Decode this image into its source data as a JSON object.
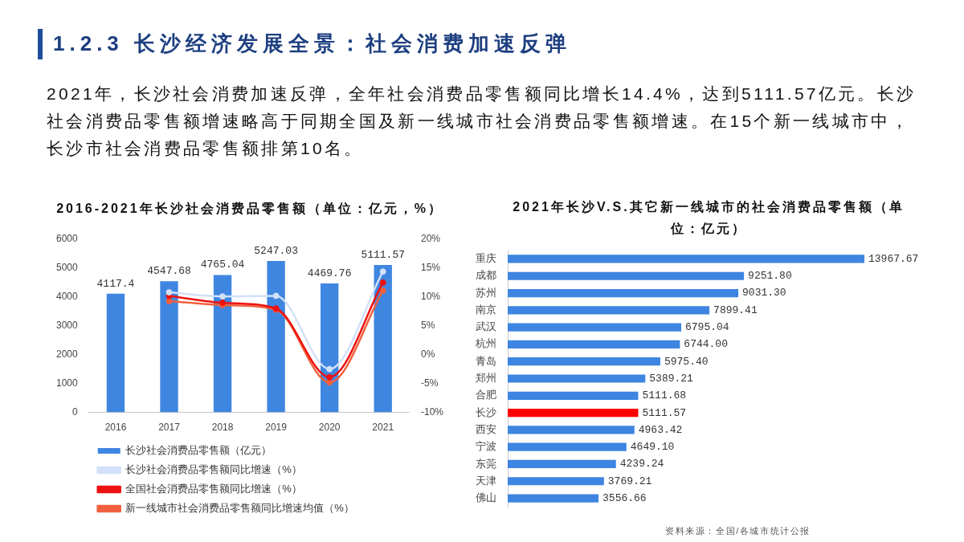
{
  "chart_data": [
    {
      "type": "other",
      "title": "1.2.3 长沙经济发展全景：社会消费加速反弹",
      "subtitle": "2021年，长沙社会消费加速反弹，全年社会消费品零售额同比增长14.4%，达到5111.57亿元。长沙社会消费品零售额增速略高于同期全国及新一线城市社会消费品零售额增速。在15个新一线城市中，长沙市社会消费品零售额排第10名。"
    },
    {
      "type": "bar",
      "title": "2016-2021年长沙社会消费品零售额（单位：亿元，%）",
      "categories": [
        "2016",
        "2017",
        "2018",
        "2019",
        "2020",
        "2021"
      ],
      "series": [
        {
          "name": "长沙社会消费品零售额（亿元）",
          "type": "bar",
          "color": "#3f86e0",
          "values": [
            4117.4,
            4547.68,
            4765.04,
            5247.03,
            4469.76,
            5111.57
          ],
          "value_labels": [
            "4117.4",
            "4547.68",
            "4765.04",
            "5247.03",
            "4469.76",
            "5111.57"
          ]
        },
        {
          "name": "长沙社会消费品零售额同比增速（%）",
          "type": "line",
          "axis": "y2",
          "color": "#d2e1f9",
          "values": [
            null,
            10.8,
            10.1,
            10.2,
            -2.5,
            14.4
          ]
        },
        {
          "name": "全国社会消费品零售额同比增速（%）",
          "type": "line",
          "axis": "y2",
          "color": "#ee1111",
          "values": [
            null,
            10.2,
            9.0,
            8.0,
            -3.9,
            12.5
          ]
        },
        {
          "name": "新一线城市社会消费品零售额同比增速均值（%）",
          "type": "line",
          "axis": "y2",
          "color": "#f0603c",
          "values": [
            null,
            9.3,
            8.6,
            7.8,
            -4.8,
            11.1
          ]
        }
      ],
      "ylim": [
        0,
        6000
      ],
      "yticks": [
        0,
        1000,
        2000,
        3000,
        4000,
        5000,
        6000
      ],
      "y2lim": [
        -10,
        20
      ],
      "y2ticks": [
        {
          "value": -10,
          "label": "-10%"
        },
        {
          "value": -5,
          "label": "-5%"
        },
        {
          "value": 0,
          "label": "0%"
        },
        {
          "value": 5,
          "label": "5%"
        },
        {
          "value": 10,
          "label": "10%"
        },
        {
          "value": 15,
          "label": "15%"
        },
        {
          "value": 20,
          "label": "20%"
        }
      ],
      "grid": false,
      "legend": "bottom",
      "marker": "circle"
    },
    {
      "type": "bar",
      "orientation": "horizontal",
      "title": "2021年长沙V.S.其它新一线城市的社会消费品零售额（单位：亿元）",
      "categories": [
        "重庆",
        "成都",
        "苏州",
        "南京",
        "武汉",
        "杭州",
        "青岛",
        "郑州",
        "合肥",
        "长沙",
        "西安",
        "宁波",
        "东莞",
        "天津",
        "佛山"
      ],
      "values": [
        13967.67,
        9251.8,
        9031.3,
        7899.41,
        6795.04,
        6744.0,
        5975.4,
        5389.21,
        5111.68,
        5111.57,
        4963.42,
        4649.1,
        4239.24,
        3769.21,
        3556.66
      ],
      "value_labels": [
        "13967.67",
        "9251.80",
        "9031.30",
        "7899.41",
        "6795.04",
        "6744.00",
        "5975.40",
        "5389.21",
        "5111.68",
        "5111.57",
        "4963.42",
        "4649.10",
        "4239.24",
        "3769.21",
        "3556.66"
      ],
      "colors": [
        "#3d85e0",
        "#3d85e0",
        "#3d85e0",
        "#3d85e0",
        "#3d85e0",
        "#3d85e0",
        "#3d85e0",
        "#3d85e0",
        "#3d85e0",
        "#ff0000",
        "#3d85e0",
        "#3d85e0",
        "#3d85e0",
        "#3d85e0",
        "#3d85e0"
      ],
      "grid": false,
      "tick_labels": "y",
      "annotations": [
        "资料来源：全国/各城市统计公报"
      ]
    }
  ]
}
